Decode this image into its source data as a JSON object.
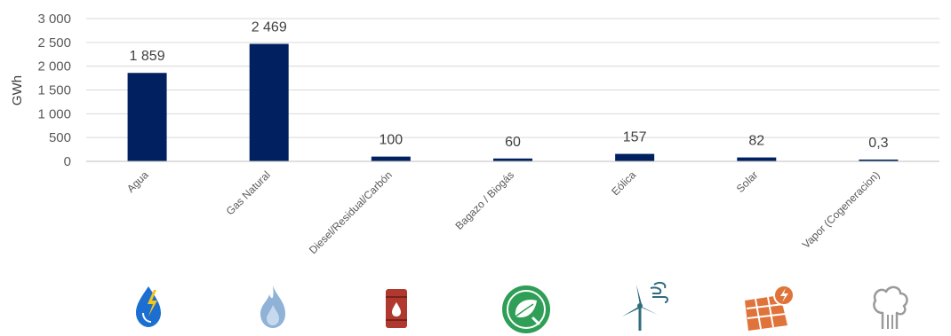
{
  "chart_data": {
    "type": "bar",
    "ylabel": "GWh",
    "ylim": [
      0,
      3000
    ],
    "yticks": [
      {
        "value": 0,
        "label": "0"
      },
      {
        "value": 500,
        "label": "500"
      },
      {
        "value": 1000,
        "label": "1 000"
      },
      {
        "value": 1500,
        "label": "1 500"
      },
      {
        "value": 2000,
        "label": "2 000"
      },
      {
        "value": 2500,
        "label": "2 500"
      },
      {
        "value": 3000,
        "label": "3 000"
      }
    ],
    "grid": true,
    "bar_color": "#002060",
    "categories": [
      "Agua",
      "Gas Natural",
      "Diesel/Residual/Carbón",
      "Bagazo / Biogás",
      "Eólica",
      "Solar",
      "Vapor (Cogeneracion)"
    ],
    "values": [
      1859,
      2469,
      100,
      60,
      157,
      82,
      0.3
    ],
    "data_labels": [
      "1 859",
      "2 469",
      "100",
      "60",
      "157",
      "82",
      "0,3"
    ],
    "icons": [
      "water-lightning-icon",
      "gas-flame-icon",
      "oil-barrel-icon",
      "biogas-leaf-plug-icon",
      "wind-turbine-icon",
      "solar-panel-icon",
      "steam-cloud-icon"
    ],
    "icon_colors": [
      "#1c6fd1",
      "#8fb2d6",
      "#b0382e",
      "#2f9e56",
      "#2f6c7e",
      "#e0733a",
      "#9a9a9a"
    ]
  }
}
